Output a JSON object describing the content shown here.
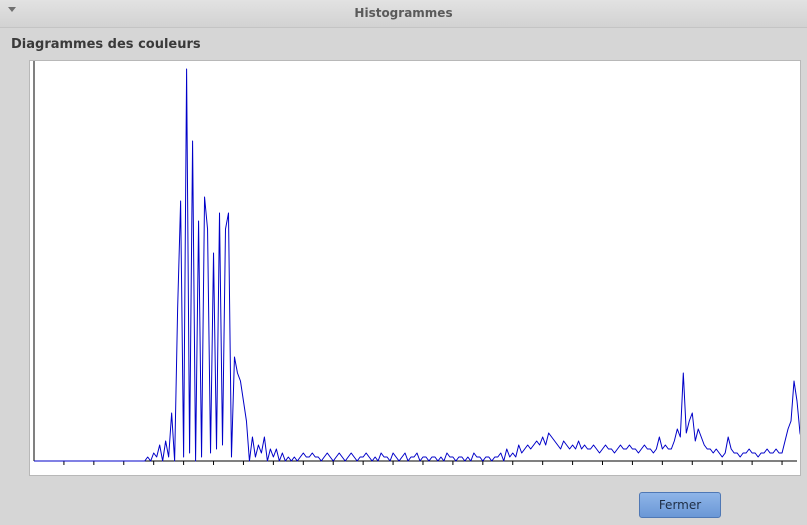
{
  "window": {
    "title": "Histogrammes"
  },
  "section": {
    "title": "Diagrammes des couleurs"
  },
  "buttons": {
    "close_label": "Fermer"
  },
  "colors": {
    "series": "#0000c8",
    "axis": "#000000"
  },
  "chart_data": {
    "type": "line",
    "title": "",
    "xlabel": "",
    "ylabel": "",
    "xlim": [
      0,
      255
    ],
    "ylim": [
      0,
      100
    ],
    "grid": false,
    "series": [
      {
        "values": [
          0,
          0,
          0,
          0,
          0,
          0,
          0,
          0,
          0,
          0,
          0,
          0,
          0,
          0,
          0,
          0,
          0,
          0,
          0,
          0,
          0,
          0,
          0,
          0,
          0,
          0,
          0,
          0,
          0,
          0,
          0,
          0,
          0,
          0,
          0,
          0,
          0,
          0,
          1,
          0,
          2,
          1,
          4,
          0,
          5,
          1,
          12,
          0,
          38,
          65,
          1,
          98,
          2,
          80,
          0,
          60,
          1,
          66,
          58,
          2,
          52,
          3,
          62,
          4,
          58,
          62,
          1,
          26,
          22,
          20,
          15,
          10,
          0,
          6,
          1,
          4,
          2,
          6,
          0,
          3,
          1,
          3,
          0,
          2,
          0,
          1,
          0,
          1,
          0,
          1,
          2,
          1,
          1,
          2,
          1,
          1,
          0,
          1,
          2,
          1,
          0,
          1,
          2,
          1,
          0,
          1,
          2,
          1,
          0,
          1,
          1,
          2,
          1,
          0,
          1,
          0,
          2,
          1,
          1,
          0,
          2,
          1,
          0,
          1,
          2,
          0,
          1,
          1,
          2,
          0,
          1,
          1,
          0,
          1,
          1,
          0,
          1,
          0,
          2,
          1,
          1,
          0,
          1,
          1,
          0,
          1,
          0,
          2,
          1,
          1,
          0,
          1,
          1,
          0,
          1,
          1,
          2,
          0,
          3,
          1,
          2,
          1,
          4,
          2,
          3,
          4,
          3,
          4,
          5,
          4,
          6,
          4,
          7,
          6,
          5,
          4,
          3,
          5,
          4,
          3,
          4,
          3,
          5,
          3,
          4,
          3,
          3,
          4,
          3,
          2,
          3,
          4,
          3,
          3,
          2,
          3,
          4,
          3,
          3,
          4,
          3,
          3,
          2,
          3,
          4,
          3,
          3,
          2,
          3,
          6,
          3,
          4,
          3,
          3,
          5,
          8,
          6,
          22,
          7,
          10,
          12,
          5,
          8,
          6,
          4,
          3,
          3,
          2,
          3,
          2,
          1,
          2,
          6,
          3,
          2,
          2,
          1,
          2,
          2,
          3,
          2,
          2,
          1,
          2,
          2,
          3,
          2,
          2,
          3,
          2,
          2,
          5,
          8,
          10,
          20,
          15,
          7,
          4,
          2,
          3
        ]
      }
    ]
  }
}
